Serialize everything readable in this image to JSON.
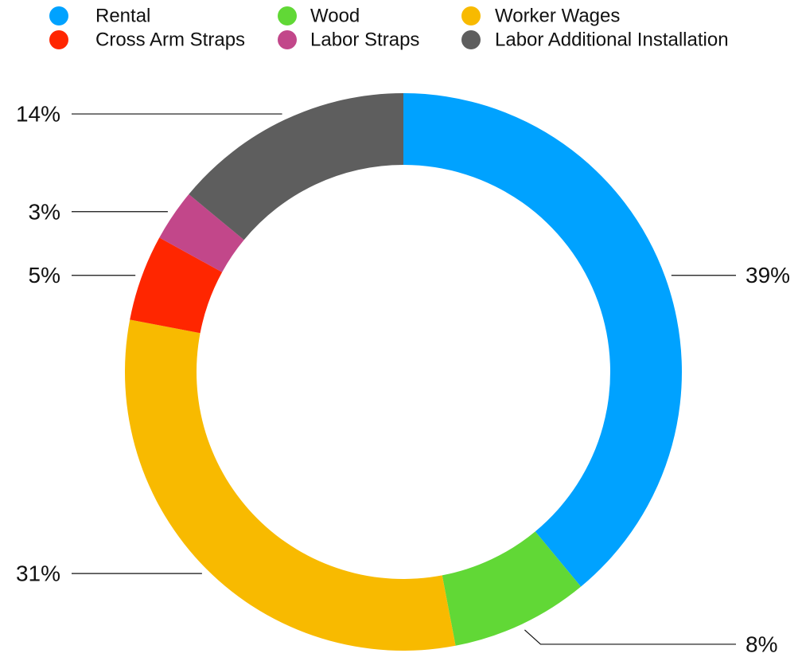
{
  "chart_data": {
    "type": "pie",
    "style": "donut",
    "legend_position": "top",
    "categories": [
      "Rental",
      "Wood",
      "Worker Wages",
      "Cross Arm Straps",
      "Labor Straps",
      "Labor Additional Installation"
    ],
    "values": [
      39,
      8,
      31,
      5,
      3,
      14
    ],
    "labels": [
      "39%",
      "8%",
      "31%",
      "5%",
      "3%",
      "14%"
    ],
    "colors": [
      "#00A2FF",
      "#61D836",
      "#F8BA00",
      "#FF2600",
      "#C2478A",
      "#5E5E5E"
    ]
  }
}
